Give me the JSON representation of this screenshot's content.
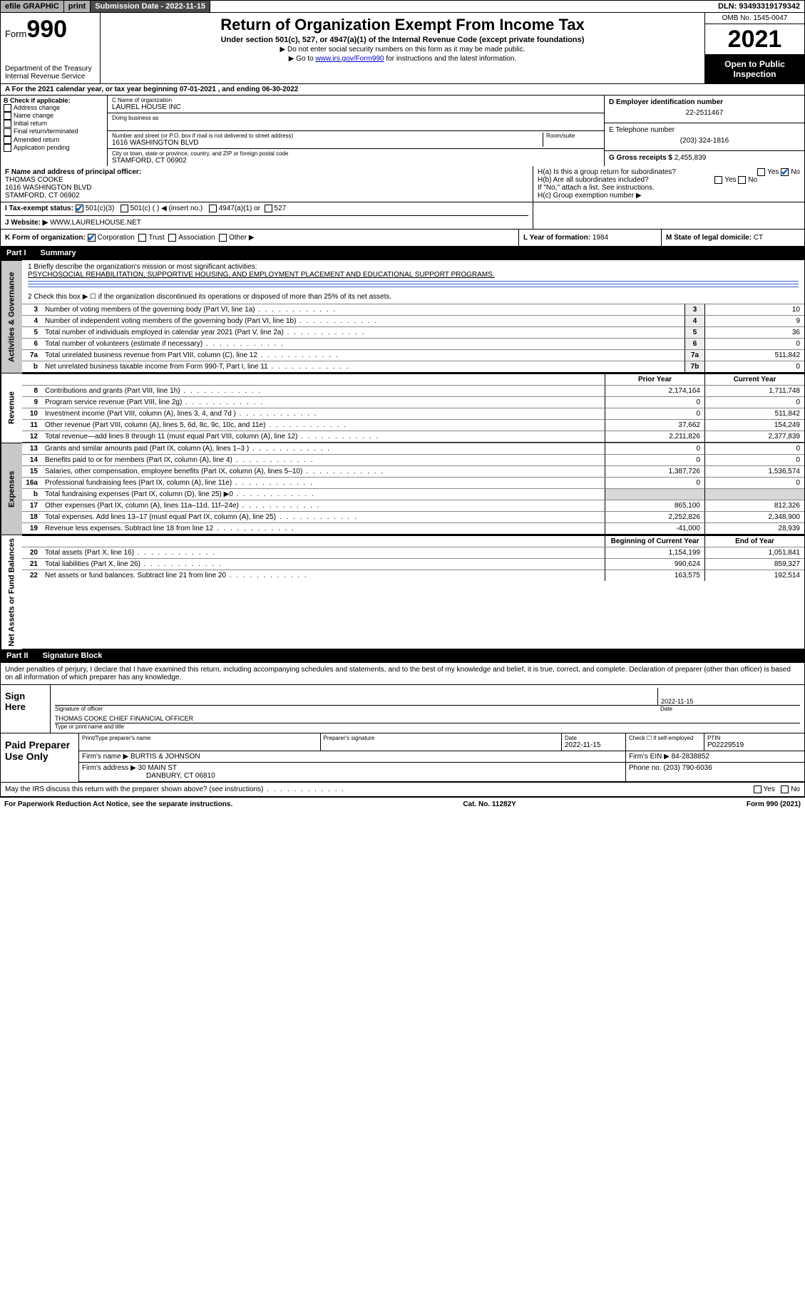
{
  "topbar": {
    "efile": "efile GRAPHIC",
    "print": "print",
    "subdate_label": "Submission Date",
    "subdate": "2022-11-15",
    "dln_label": "DLN:",
    "dln": "93493319179342"
  },
  "header": {
    "form_prefix": "Form",
    "form_no": "990",
    "dept1": "Department of the Treasury",
    "dept2": "Internal Revenue Service",
    "title": "Return of Organization Exempt From Income Tax",
    "sub": "Under section 501(c), 527, or 4947(a)(1) of the Internal Revenue Code (except private foundations)",
    "note1": "▶ Do not enter social security numbers on this form as it may be made public.",
    "note2_pre": "▶ Go to ",
    "note2_link": "www.irs.gov/Form990",
    "note2_post": " for instructions and the latest information.",
    "omb": "OMB No. 1545-0047",
    "year": "2021",
    "open": "Open to Public Inspection"
  },
  "row_a": "A For the 2021 calendar year, or tax year beginning 07-01-2021  , and ending 06-30-2022",
  "col_b": {
    "hdr": "B Check if applicable:",
    "items": [
      "Address change",
      "Name change",
      "Initial return",
      "Final return/terminated",
      "Amended return",
      "Application pending"
    ]
  },
  "col_c": {
    "name_lbl": "C Name of organization",
    "name_val": "LAUREL HOUSE INC",
    "dba_lbl": "Doing business as",
    "addr_lbl": "Number and street (or P.O. box if mail is not delivered to street address)",
    "room_lbl": "Room/suite",
    "addr_val": "1616 WASHINGTON BLVD",
    "city_lbl": "City or town, state or province, country, and ZIP or foreign postal code",
    "city_val": "STAMFORD, CT  06902"
  },
  "col_d": {
    "ein_lbl": "D Employer identification number",
    "ein_val": "22-2511467",
    "tel_lbl": "E Telephone number",
    "tel_val": "(203) 324-1816",
    "gross_lbl": "G Gross receipts $",
    "gross_val": "2,455,839"
  },
  "row_f": {
    "officer_lbl": "F Name and address of principal officer:",
    "officer_name": "THOMAS COOKE",
    "officer_addr1": "1616 WASHINGTON BLVD",
    "officer_addr2": "STAMFORD, CT  06902",
    "ha_a": "H(a)  Is this a group return for subordinates?",
    "ha_b": "H(b)  Are all subordinates included?",
    "ha_note": "If \"No,\" attach a list. See instructions.",
    "ha_c": "H(c)  Group exemption number ▶",
    "yes": "Yes",
    "no": "No"
  },
  "row_i": {
    "lbl": "I  Tax-exempt status:",
    "o1": "501(c)(3)",
    "o2": "501(c) (  ) ◀ (insert no.)",
    "o3": "4947(a)(1) or",
    "o4": "527"
  },
  "row_j": {
    "lbl": "J  Website: ▶",
    "val": "WWW.LAURELHOUSE.NET"
  },
  "row_k": {
    "k_lbl": "K Form of organization:",
    "k_o": [
      "Corporation",
      "Trust",
      "Association",
      "Other ▶"
    ],
    "l_lbl": "L Year of formation:",
    "l_val": "1984",
    "m_lbl": "M State of legal domicile:",
    "m_val": "CT"
  },
  "part1": {
    "pt": "Part I",
    "title": "Summary"
  },
  "mission": {
    "q1": "1  Briefly describe the organization's mission or most significant activities:",
    "a1": "PSYCHOSOCIAL REHABILITATION, SUPPORTIVE HOUSING, AND EMPLOYMENT PLACEMENT AND EDUCATIONAL SUPPORT PROGRAMS.",
    "q2": "2  Check this box ▶  ☐  if the organization discontinued its operations or disposed of more than 25% of its net assets."
  },
  "gov_lines": [
    {
      "n": "3",
      "t": "Number of voting members of the governing body (Part VI, line 1a)",
      "box": "3",
      "v": "10"
    },
    {
      "n": "4",
      "t": "Number of independent voting members of the governing body (Part VI, line 1b)",
      "box": "4",
      "v": "9"
    },
    {
      "n": "5",
      "t": "Total number of individuals employed in calendar year 2021 (Part V, line 2a)",
      "box": "5",
      "v": "36"
    },
    {
      "n": "6",
      "t": "Total number of volunteers (estimate if necessary)",
      "box": "6",
      "v": "0"
    },
    {
      "n": "7a",
      "t": "Total unrelated business revenue from Part VIII, column (C), line 12",
      "box": "7a",
      "v": "511,842"
    },
    {
      "n": "b",
      "t": "Net unrelated business taxable income from Form 990-T, Part I, line 11",
      "box": "7b",
      "v": "0"
    }
  ],
  "col_hdr": {
    "py": "Prior Year",
    "cy": "Current Year"
  },
  "rev_lines": [
    {
      "n": "8",
      "t": "Contributions and grants (Part VIII, line 1h)",
      "py": "2,174,164",
      "cy": "1,711,748"
    },
    {
      "n": "9",
      "t": "Program service revenue (Part VIII, line 2g)",
      "py": "0",
      "cy": "0"
    },
    {
      "n": "10",
      "t": "Investment income (Part VIII, column (A), lines 3, 4, and 7d )",
      "py": "0",
      "cy": "511,842"
    },
    {
      "n": "11",
      "t": "Other revenue (Part VIII, column (A), lines 5, 6d, 8c, 9c, 10c, and 11e)",
      "py": "37,662",
      "cy": "154,249"
    },
    {
      "n": "12",
      "t": "Total revenue—add lines 8 through 11 (must equal Part VIII, column (A), line 12)",
      "py": "2,211,826",
      "cy": "2,377,839"
    }
  ],
  "exp_lines": [
    {
      "n": "13",
      "t": "Grants and similar amounts paid (Part IX, column (A), lines 1–3 )",
      "py": "0",
      "cy": "0"
    },
    {
      "n": "14",
      "t": "Benefits paid to or for members (Part IX, column (A), line 4)",
      "py": "0",
      "cy": "0"
    },
    {
      "n": "15",
      "t": "Salaries, other compensation, employee benefits (Part IX, column (A), lines 5–10)",
      "py": "1,387,726",
      "cy": "1,536,574"
    },
    {
      "n": "16a",
      "t": "Professional fundraising fees (Part IX, column (A), line 11e)",
      "py": "0",
      "cy": "0"
    },
    {
      "n": "b",
      "t": "Total fundraising expenses (Part IX, column (D), line 25) ▶0",
      "py": "",
      "cy": ""
    },
    {
      "n": "17",
      "t": "Other expenses (Part IX, column (A), lines 11a–11d, 11f–24e)",
      "py": "865,100",
      "cy": "812,326"
    },
    {
      "n": "18",
      "t": "Total expenses. Add lines 13–17 (must equal Part IX, column (A), line 25)",
      "py": "2,252,826",
      "cy": "2,348,900"
    },
    {
      "n": "19",
      "t": "Revenue less expenses. Subtract line 18 from line 12",
      "py": "-41,000",
      "cy": "28,939"
    }
  ],
  "na_hdr": {
    "boy": "Beginning of Current Year",
    "eoy": "End of Year"
  },
  "na_lines": [
    {
      "n": "20",
      "t": "Total assets (Part X, line 16)",
      "py": "1,154,199",
      "cy": "1,051,841"
    },
    {
      "n": "21",
      "t": "Total liabilities (Part X, line 26)",
      "py": "990,624",
      "cy": "859,327"
    },
    {
      "n": "22",
      "t": "Net assets or fund balances. Subtract line 21 from line 20",
      "py": "163,575",
      "cy": "192,514"
    }
  ],
  "part2": {
    "pt": "Part II",
    "title": "Signature Block"
  },
  "sig": {
    "decl": "Under penalties of perjury, I declare that I have examined this return, including accompanying schedules and statements, and to the best of my knowledge and belief, it is true, correct, and complete. Declaration of preparer (other than officer) is based on all information of which preparer has any knowledge.",
    "here": "Sign Here",
    "sig_of": "Signature of officer",
    "date_lbl": "Date",
    "sig_date": "2022-11-15",
    "name": "THOMAS COOKE  CHIEF FINANCIAL OFFICER",
    "name_lbl": "Type or print name and title"
  },
  "prep": {
    "lbl": "Paid Preparer Use Only",
    "c1": "Print/Type preparer's name",
    "c2": "Preparer's signature",
    "c3_l": "Date",
    "c3_v": "2022-11-15",
    "c4_l": "Check ☐ if self-employed",
    "c5_l": "PTIN",
    "c5_v": "P02229519",
    "firm_name_l": "Firm's name   ▶",
    "firm_name_v": "BURTIS & JOHNSON",
    "firm_ein_l": "Firm's EIN ▶",
    "firm_ein_v": "84-2838852",
    "firm_addr_l": "Firm's address ▶",
    "firm_addr_v1": "30 MAIN ST",
    "firm_addr_v2": "DANBURY, CT  06810",
    "phone_l": "Phone no.",
    "phone_v": "(203) 790-6036",
    "discuss": "May the IRS discuss this return with the preparer shown above? (see instructions)"
  },
  "footer": {
    "l": "For Paperwork Reduction Act Notice, see the separate instructions.",
    "c": "Cat. No. 11282Y",
    "r": "Form 990 (2021)"
  },
  "vlabels": {
    "gov": "Activities & Governance",
    "rev": "Revenue",
    "exp": "Expenses",
    "na": "Net Assets or Fund Balances"
  }
}
